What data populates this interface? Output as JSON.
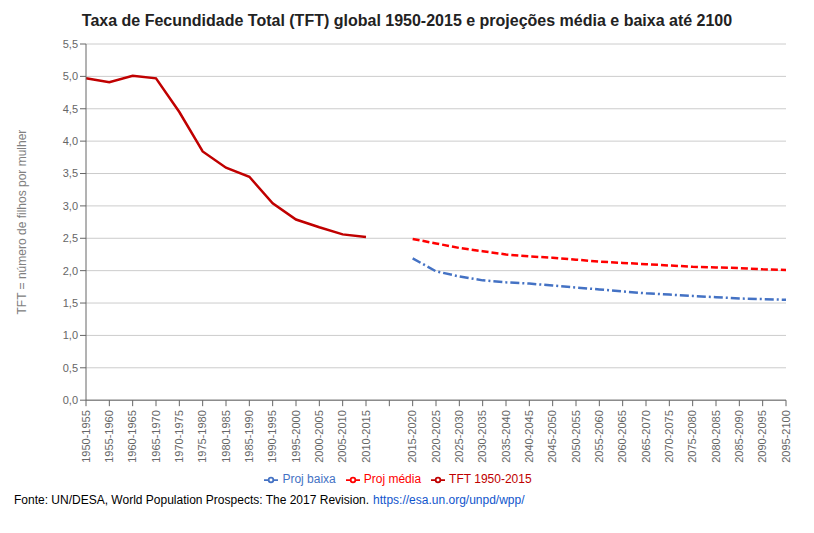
{
  "chart_data": {
    "type": "line",
    "title": "Taxa de Fecundidade Total (TFT) global 1950-2015 e projeções média e baixa até 2100",
    "y_label": "TFT = número de filhos por mulher",
    "annotations": [
      "Fonte: UN/DESA, World Population Prospects: The 2017 Revision.",
      "https://esa.un.org/unpd/wpp/"
    ],
    "categories": [
      "1950-1955",
      "1955-1960",
      "1960-1965",
      "1965-1970",
      "1970-1975",
      "1975-1980",
      "1980-1985",
      "1985-1990",
      "1990-1995",
      "1995-2000",
      "2000-2005",
      "2005-2010",
      "2010-2015",
      null,
      "2015-2020",
      "2020-2025",
      "2025-2030",
      "2030-2035",
      "2035-2040",
      "2040-2045",
      "2045-2050",
      "2050-2055",
      "2055-2060",
      "2060-2065",
      "2065-2070",
      "2070-2075",
      "2075-2080",
      "2080-2085",
      "2085-2090",
      "2090-2095",
      "2095-2100"
    ],
    "series": [
      {
        "name": "TFT 1950-2015",
        "color": "#C00000",
        "line_style": "solid",
        "values": [
          4.97,
          4.91,
          5.01,
          4.97,
          4.45,
          3.84,
          3.59,
          3.45,
          3.04,
          2.79,
          2.67,
          2.56,
          2.52,
          null,
          null,
          null,
          null,
          null,
          null,
          null,
          null,
          null,
          null,
          null,
          null,
          null,
          null,
          null,
          null,
          null,
          null
        ]
      },
      {
        "name": "Proj média",
        "color": "#FF0000",
        "line_style": "dashed",
        "values": [
          null,
          null,
          null,
          null,
          null,
          null,
          null,
          null,
          null,
          null,
          null,
          null,
          null,
          null,
          2.49,
          2.42,
          2.35,
          2.3,
          2.25,
          2.22,
          2.2,
          2.17,
          2.14,
          2.12,
          2.1,
          2.08,
          2.06,
          2.05,
          2.04,
          2.02,
          2.01
        ]
      },
      {
        "name": "Proj baixa",
        "color": "#4472C4",
        "line_style": "dashdot",
        "values": [
          null,
          null,
          null,
          null,
          null,
          null,
          null,
          null,
          null,
          null,
          null,
          null,
          null,
          null,
          2.19,
          1.99,
          1.91,
          1.85,
          1.82,
          1.8,
          1.77,
          1.74,
          1.71,
          1.68,
          1.65,
          1.63,
          1.61,
          1.59,
          1.57,
          1.56,
          1.55
        ]
      }
    ],
    "ylim": [
      0.0,
      5.5
    ],
    "yticks": [
      {
        "value": 0.0,
        "label": "0,0"
      },
      {
        "value": 0.5,
        "label": "0,5"
      },
      {
        "value": 1.0,
        "label": "1,0"
      },
      {
        "value": 1.5,
        "label": "1,5"
      },
      {
        "value": 2.0,
        "label": "2,0"
      },
      {
        "value": 2.5,
        "label": "2,5"
      },
      {
        "value": 3.0,
        "label": "3,0"
      },
      {
        "value": 3.5,
        "label": "3,5"
      },
      {
        "value": 4.0,
        "label": "4,0"
      },
      {
        "value": 4.5,
        "label": "4,5"
      },
      {
        "value": 5.0,
        "label": "5,0"
      },
      {
        "value": 5.5,
        "label": "5,5"
      }
    ],
    "grid": true,
    "legend": "bottom"
  }
}
